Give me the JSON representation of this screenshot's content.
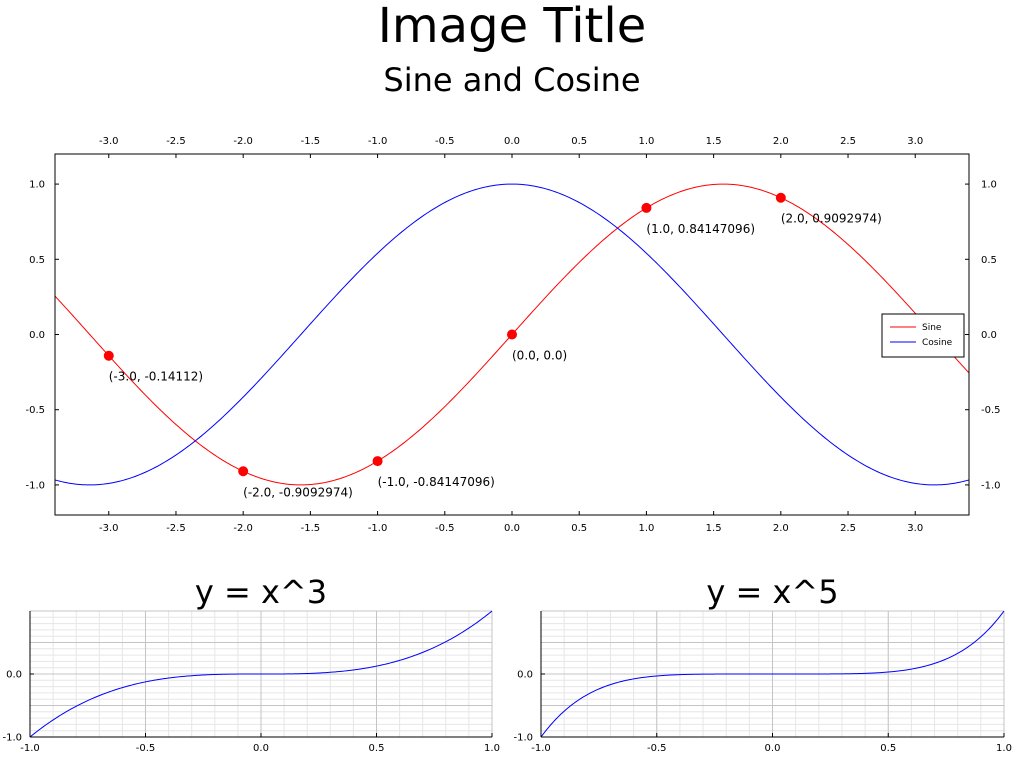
{
  "header": {
    "title": "Image Title",
    "subtitle": "Sine and Cosine"
  },
  "chart_data": [
    {
      "type": "line",
      "title": "Sine and Cosine",
      "xlim": [
        -3.4,
        3.4
      ],
      "ylim": [
        -1.2,
        1.2
      ],
      "x_ticks": [
        -3.0,
        -2.5,
        -2.0,
        -1.5,
        -1.0,
        -0.5,
        0.0,
        0.5,
        1.0,
        1.5,
        2.0,
        2.5,
        3.0
      ],
      "x_tick_labels": [
        "-3.0",
        "-2.5",
        "-2.0",
        "-1.5",
        "-1.0",
        "-0.5",
        "0.0",
        "0.5",
        "1.0",
        "1.5",
        "2.0",
        "2.5",
        "3.0"
      ],
      "y_ticks": [
        1.0,
        0.5,
        0.0,
        -0.5,
        -1.0
      ],
      "y_tick_labels": [
        "1.0",
        "0.5",
        "0.0",
        "-0.5",
        "-1.0"
      ],
      "axes_mirrored": true,
      "grid": false,
      "legend_position": "right",
      "series": [
        {
          "name": "Sine",
          "function": "sin(x)",
          "color": "#ff0000"
        },
        {
          "name": "Cosine",
          "function": "cos(x)",
          "color": "#0000ff"
        }
      ],
      "points": [
        {
          "x": -3.0,
          "y": -0.14112,
          "label": "(-3.0, -0.14112)"
        },
        {
          "x": -2.0,
          "y": -0.9092974,
          "label": "(-2.0, -0.9092974)"
        },
        {
          "x": -1.0,
          "y": -0.84147096,
          "label": "(-1.0, -0.84147096)"
        },
        {
          "x": 0.0,
          "y": 0.0,
          "label": "(0.0, 0.0)"
        },
        {
          "x": 1.0,
          "y": 0.84147096,
          "label": "(1.0, 0.84147096)"
        },
        {
          "x": 2.0,
          "y": 0.9092974,
          "label": "(2.0, 0.9092974)"
        }
      ],
      "point_color": "#ff0000"
    },
    {
      "type": "line",
      "title": "y = x^3",
      "xlim": [
        -1.0,
        1.0
      ],
      "ylim": [
        -1.0,
        1.0
      ],
      "x_ticks": [
        -1.0,
        -0.5,
        0.0,
        0.5,
        1.0
      ],
      "x_tick_labels": [
        "-1.0",
        "-0.5",
        "0.0",
        "0.5",
        "1.0"
      ],
      "y_ticks": [
        0.0,
        -1.0
      ],
      "y_tick_labels": [
        "0.0",
        "-1.0"
      ],
      "grid": true,
      "series": [
        {
          "function": "x^3",
          "color": "#0000ff"
        }
      ]
    },
    {
      "type": "line",
      "title": "y = x^5",
      "xlim": [
        -1.0,
        1.0
      ],
      "ylim": [
        -1.0,
        1.0
      ],
      "x_ticks": [
        -1.0,
        -0.5,
        0.0,
        0.5,
        1.0
      ],
      "x_tick_labels": [
        "-1.0",
        "-0.5",
        "0.0",
        "0.5",
        "1.0"
      ],
      "y_ticks": [
        0.0,
        -1.0
      ],
      "y_tick_labels": [
        "0.0",
        "-1.0"
      ],
      "grid": true,
      "series": [
        {
          "function": "x^5",
          "color": "#0000ff"
        }
      ]
    }
  ]
}
